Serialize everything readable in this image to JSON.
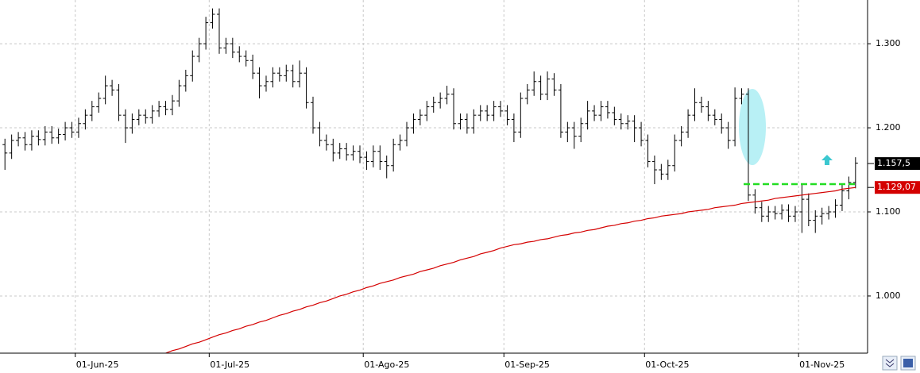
{
  "chart_data": {
    "type": "ohlc",
    "categories": [
      null,
      null,
      null,
      null,
      null,
      null,
      null,
      null,
      null,
      null,
      null,
      "01-Jun-25",
      null,
      null,
      null,
      null,
      null,
      null,
      null,
      null,
      null,
      null,
      null,
      null,
      null,
      null,
      null,
      null,
      null,
      null,
      null,
      "01-Jul-25",
      null,
      null,
      null,
      null,
      null,
      null,
      null,
      null,
      null,
      null,
      null,
      null,
      null,
      null,
      null,
      null,
      null,
      null,
      null,
      null,
      null,
      null,
      "01-Ago-25",
      null,
      null,
      null,
      null,
      null,
      null,
      null,
      null,
      null,
      null,
      null,
      null,
      null,
      null,
      null,
      null,
      null,
      null,
      null,
      null,
      "01-Sep-25",
      null,
      null,
      null,
      null,
      null,
      null,
      null,
      null,
      null,
      null,
      null,
      null,
      null,
      null,
      null,
      null,
      null,
      null,
      null,
      null,
      "01-Oct-25",
      null,
      null,
      null,
      null,
      null,
      null,
      null,
      null,
      null,
      null,
      null,
      null,
      null,
      null,
      null,
      null,
      null,
      null,
      null,
      null,
      null,
      null,
      "01-Nov-25",
      null,
      null,
      null,
      null,
      null,
      null,
      null,
      null
    ],
    "open": [
      1.18,
      1.17,
      1.185,
      1.188,
      1.18,
      1.19,
      1.186,
      1.195,
      1.188,
      1.192,
      1.2,
      1.195,
      1.205,
      1.215,
      1.225,
      1.235,
      1.25,
      1.245,
      1.215,
      1.2,
      1.21,
      1.215,
      1.212,
      1.22,
      1.225,
      1.222,
      1.232,
      1.25,
      1.262,
      1.285,
      1.3,
      1.325,
      1.335,
      1.295,
      1.3,
      1.29,
      1.285,
      1.28,
      1.265,
      1.25,
      1.255,
      1.265,
      1.262,
      1.268,
      1.255,
      1.265,
      1.23,
      1.2,
      1.185,
      1.18,
      1.17,
      1.175,
      1.168,
      1.172,
      1.165,
      1.16,
      1.172,
      1.16,
      1.155,
      1.18,
      1.185,
      1.2,
      1.21,
      1.215,
      1.225,
      1.23,
      1.235,
      1.24,
      1.205,
      1.21,
      1.2,
      1.215,
      1.22,
      1.215,
      1.225,
      1.22,
      1.21,
      1.195,
      1.235,
      1.245,
      1.255,
      1.24,
      1.258,
      1.245,
      1.195,
      1.2,
      1.19,
      1.205,
      1.22,
      1.215,
      1.225,
      1.218,
      1.21,
      1.205,
      1.208,
      1.2,
      1.185,
      1.16,
      1.15,
      1.145,
      1.155,
      1.185,
      1.195,
      1.215,
      1.23,
      1.225,
      1.215,
      1.21,
      1.2,
      1.185,
      1.235,
      1.24,
      1.12,
      1.105,
      1.095,
      1.1,
      1.098,
      1.102,
      1.095,
      1.1,
      1.115,
      1.09,
      1.095,
      1.098,
      1.1,
      1.108,
      1.125,
      1.135
    ],
    "high": [
      1.187,
      1.192,
      1.195,
      1.195,
      1.197,
      1.197,
      1.202,
      1.202,
      1.199,
      1.207,
      1.207,
      1.212,
      1.222,
      1.232,
      1.242,
      1.262,
      1.257,
      1.252,
      1.222,
      1.217,
      1.222,
      1.222,
      1.227,
      1.232,
      1.232,
      1.239,
      1.257,
      1.269,
      1.292,
      1.307,
      1.332,
      1.342,
      1.342,
      1.307,
      1.307,
      1.297,
      1.292,
      1.287,
      1.272,
      1.262,
      1.272,
      1.272,
      1.275,
      1.275,
      1.28,
      1.272,
      1.237,
      1.207,
      1.192,
      1.187,
      1.182,
      1.182,
      1.179,
      1.179,
      1.172,
      1.179,
      1.179,
      1.167,
      1.187,
      1.192,
      1.207,
      1.217,
      1.222,
      1.232,
      1.237,
      1.242,
      1.25,
      1.247,
      1.217,
      1.217,
      1.222,
      1.227,
      1.227,
      1.232,
      1.232,
      1.227,
      1.217,
      1.242,
      1.252,
      1.267,
      1.262,
      1.267,
      1.265,
      1.252,
      1.207,
      1.207,
      1.212,
      1.232,
      1.227,
      1.232,
      1.232,
      1.225,
      1.217,
      1.215,
      1.215,
      1.207,
      1.192,
      1.167,
      1.157,
      1.162,
      1.192,
      1.202,
      1.222,
      1.247,
      1.237,
      1.232,
      1.222,
      1.217,
      1.207,
      1.248,
      1.247,
      1.247,
      1.127,
      1.112,
      1.107,
      1.107,
      1.109,
      1.109,
      1.107,
      1.133,
      1.122,
      1.102,
      1.105,
      1.107,
      1.115,
      1.132,
      1.142,
      1.165
    ],
    "low": [
      1.15,
      1.163,
      1.178,
      1.173,
      1.173,
      1.179,
      1.179,
      1.181,
      1.181,
      1.185,
      1.188,
      1.188,
      1.198,
      1.208,
      1.218,
      1.228,
      1.238,
      1.208,
      1.182,
      1.193,
      1.203,
      1.205,
      1.205,
      1.213,
      1.215,
      1.215,
      1.225,
      1.243,
      1.255,
      1.278,
      1.293,
      1.318,
      1.288,
      1.288,
      1.283,
      1.278,
      1.273,
      1.258,
      1.235,
      1.243,
      1.248,
      1.255,
      1.255,
      1.248,
      1.248,
      1.223,
      1.193,
      1.178,
      1.173,
      1.16,
      1.163,
      1.161,
      1.161,
      1.158,
      1.15,
      1.153,
      1.15,
      1.14,
      1.148,
      1.173,
      1.178,
      1.193,
      1.203,
      1.208,
      1.218,
      1.223,
      1.228,
      1.198,
      1.198,
      1.193,
      1.193,
      1.208,
      1.208,
      1.208,
      1.213,
      1.203,
      1.183,
      1.188,
      1.228,
      1.238,
      1.233,
      1.233,
      1.238,
      1.188,
      1.183,
      1.175,
      1.183,
      1.198,
      1.208,
      1.208,
      1.211,
      1.203,
      1.198,
      1.198,
      1.183,
      1.178,
      1.153,
      1.133,
      1.138,
      1.138,
      1.148,
      1.178,
      1.188,
      1.208,
      1.218,
      1.208,
      1.203,
      1.193,
      1.175,
      1.178,
      1.228,
      1.113,
      1.098,
      1.088,
      1.088,
      1.091,
      1.091,
      1.088,
      1.088,
      1.075,
      1.083,
      1.075,
      1.085,
      1.091,
      1.093,
      1.101,
      1.115,
      1.128
    ],
    "close": [
      1.17,
      1.185,
      1.188,
      1.18,
      1.19,
      1.186,
      1.195,
      1.188,
      1.192,
      1.2,
      1.195,
      1.205,
      1.215,
      1.225,
      1.235,
      1.25,
      1.245,
      1.215,
      1.2,
      1.21,
      1.215,
      1.212,
      1.22,
      1.225,
      1.222,
      1.232,
      1.25,
      1.262,
      1.285,
      1.3,
      1.325,
      1.335,
      1.295,
      1.3,
      1.29,
      1.285,
      1.28,
      1.265,
      1.25,
      1.255,
      1.265,
      1.262,
      1.268,
      1.255,
      1.265,
      1.23,
      1.2,
      1.185,
      1.18,
      1.17,
      1.175,
      1.168,
      1.172,
      1.165,
      1.16,
      1.172,
      1.16,
      1.155,
      1.18,
      1.185,
      1.2,
      1.21,
      1.215,
      1.225,
      1.23,
      1.235,
      1.24,
      1.205,
      1.21,
      1.2,
      1.215,
      1.22,
      1.215,
      1.225,
      1.22,
      1.21,
      1.195,
      1.235,
      1.245,
      1.255,
      1.24,
      1.258,
      1.245,
      1.195,
      1.2,
      1.19,
      1.205,
      1.22,
      1.215,
      1.225,
      1.218,
      1.21,
      1.205,
      1.208,
      1.2,
      1.185,
      1.16,
      1.15,
      1.145,
      1.155,
      1.185,
      1.195,
      1.215,
      1.23,
      1.225,
      1.215,
      1.21,
      1.2,
      1.185,
      1.235,
      1.24,
      1.12,
      1.105,
      1.095,
      1.1,
      1.098,
      1.102,
      1.095,
      1.1,
      1.115,
      1.09,
      1.095,
      1.098,
      1.1,
      1.108,
      1.125,
      1.135,
      1.158
    ],
    "ma": [
      null,
      null,
      null,
      null,
      null,
      null,
      null,
      null,
      null,
      null,
      null,
      null,
      null,
      null,
      null,
      null,
      null,
      null,
      null,
      null,
      null,
      null,
      null,
      null,
      0.932,
      0.935,
      0.937,
      0.94,
      0.943,
      0.945,
      0.948,
      0.951,
      0.954,
      0.956,
      0.959,
      0.961,
      0.964,
      0.966,
      0.969,
      0.971,
      0.974,
      0.977,
      0.979,
      0.982,
      0.984,
      0.987,
      0.989,
      0.992,
      0.994,
      0.997,
      1.0,
      1.002,
      1.005,
      1.007,
      1.01,
      1.012,
      1.015,
      1.017,
      1.019,
      1.022,
      1.024,
      1.026,
      1.029,
      1.031,
      1.033,
      1.036,
      1.038,
      1.04,
      1.043,
      1.045,
      1.047,
      1.05,
      1.052,
      1.054,
      1.057,
      1.059,
      1.061,
      1.062,
      1.064,
      1.065,
      1.067,
      1.068,
      1.07,
      1.072,
      1.073,
      1.075,
      1.076,
      1.078,
      1.079,
      1.081,
      1.083,
      1.084,
      1.086,
      1.087,
      1.089,
      1.09,
      1.092,
      1.093,
      1.095,
      1.096,
      1.097,
      1.098,
      1.1,
      1.101,
      1.102,
      1.103,
      1.105,
      1.106,
      1.107,
      1.108,
      1.11,
      1.111,
      1.112,
      1.113,
      1.114,
      1.116,
      1.117,
      1.118,
      1.119,
      1.12,
      1.121,
      1.122,
      1.123,
      1.124,
      1.125,
      1.127,
      1.128,
      1.129
    ],
    "bar_color": "#000000",
    "ma_color": "#d40000",
    "level": 1.133,
    "level_color": "#22dd22",
    "last_price": {
      "value": 1.1575,
      "label": "1.157,5"
    },
    "ma_last": {
      "value": 1.12907,
      "label": "1.129,07"
    },
    "ylim": [
      0.932,
      1.352
    ],
    "yticks": [
      {
        "value": 1.0,
        "label": "1.000"
      },
      {
        "value": 1.1,
        "label": "1.100"
      },
      {
        "value": 1.2,
        "label": "1.200"
      },
      {
        "value": 1.3,
        "label": "1.300"
      }
    ],
    "grid": true
  }
}
